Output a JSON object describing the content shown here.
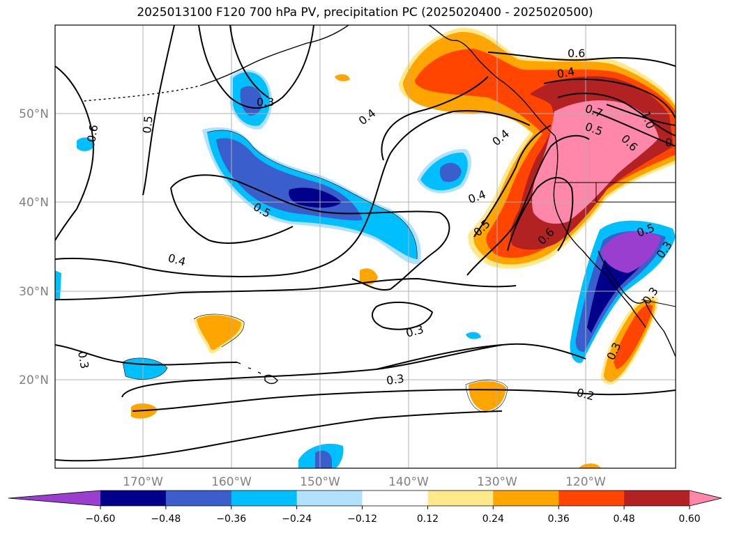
{
  "title": "2025013100 F120 700 hPa PV, precipitation PC (2025020400 - 2025020500)",
  "lat_labels": [
    "50°N",
    "40°N",
    "30°N",
    "20°N"
  ],
  "lon_labels": [
    "170°W",
    "160°W",
    "150°W",
    "140°W",
    "130°W",
    "120°W"
  ],
  "colorbar": {
    "ticks": [
      "−0.60",
      "−0.48",
      "−0.36",
      "−0.24",
      "−0.12",
      "0.12",
      "0.24",
      "0.36",
      "0.48",
      "0.60"
    ],
    "colors": [
      "#9a3ed0",
      "#00008b",
      "#3a5fcd",
      "#00bfff",
      "#b0e2ff",
      "#ffffff",
      "#ffe98a",
      "#ffa500",
      "#ff4500",
      "#b22222",
      "#ff88aa"
    ]
  },
  "contour_labels": [
    "0.3",
    "0.4",
    "0.6",
    "0.5",
    "0.6",
    "0.5",
    "0.3",
    "0.4",
    "0.4",
    "0.7",
    "0.5",
    "0.6",
    "1.0",
    "0",
    "0.4",
    "0.4",
    "0.5",
    "0.6",
    "0.3",
    "0.3",
    "0.3",
    "0.2",
    "0.3",
    "0.3",
    "0.5"
  ]
}
